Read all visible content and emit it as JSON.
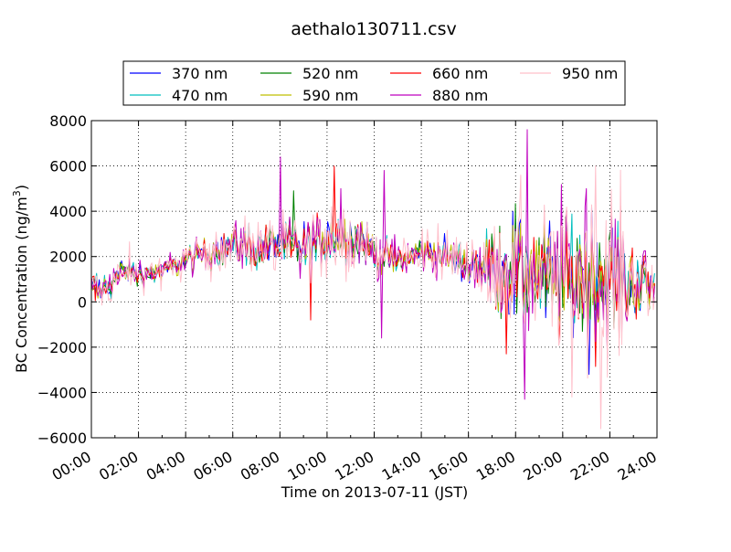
{
  "chart_data": {
    "type": "line",
    "title": "aethalo130711.csv",
    "xlabel": "Time on 2013-07-11 (JST)",
    "ylabel_text": "BC Concentration (ng/m",
    "ylabel_sup": "3",
    "ylabel_close": ")",
    "xlim": [
      0,
      24
    ],
    "ylim": [
      -6000,
      8000
    ],
    "x_ticks": [
      0,
      2,
      4,
      6,
      8,
      10,
      12,
      14,
      16,
      18,
      20,
      22,
      24
    ],
    "x_tick_labels": [
      "00:00",
      "02:00",
      "04:00",
      "06:00",
      "08:00",
      "10:00",
      "12:00",
      "14:00",
      "16:00",
      "18:00",
      "20:00",
      "22:00",
      "24:00"
    ],
    "y_ticks": [
      -6000,
      -4000,
      -2000,
      0,
      2000,
      4000,
      6000,
      8000
    ],
    "y_tick_labels": [
      "−6000",
      "−4000",
      "−2000",
      "0",
      "2000",
      "4000",
      "6000",
      "8000"
    ],
    "grid": true,
    "legend_position": "top",
    "series": [
      {
        "name": "370 nm",
        "color": "#0000ff"
      },
      {
        "name": "470 nm",
        "color": "#00bfbf"
      },
      {
        "name": "520 nm",
        "color": "#008000"
      },
      {
        "name": "590 nm",
        "color": "#bfbf00"
      },
      {
        "name": "660 nm",
        "color": "#ff0000"
      },
      {
        "name": "880 nm",
        "color": "#bf00bf"
      },
      {
        "name": "950 nm",
        "color": "#ffc0cb"
      }
    ],
    "baseline_profile": {
      "hours": [
        0,
        0.5,
        1,
        1.5,
        2,
        3,
        4,
        5,
        6,
        7,
        8,
        9,
        10,
        10.5,
        11,
        11.5,
        12,
        13,
        14,
        15,
        16,
        17,
        18,
        19,
        20,
        21,
        22,
        23,
        24
      ],
      "values": [
        600,
        500,
        1000,
        1400,
        1200,
        1300,
        1900,
        2200,
        2500,
        2400,
        2500,
        2300,
        2700,
        3000,
        2800,
        2700,
        2200,
        1800,
        2200,
        2000,
        1700,
        1500,
        1400,
        1300,
        1200,
        1000,
        1200,
        900,
        600
      ]
    },
    "noise_envelope": {
      "hours": [
        0,
        2,
        4,
        6,
        8,
        10,
        12,
        14,
        16,
        17,
        18,
        19,
        20,
        21,
        22,
        23,
        24
      ],
      "amplitude": [
        500,
        400,
        400,
        600,
        800,
        900,
        600,
        500,
        700,
        1200,
        1800,
        1400,
        1800,
        2200,
        2200,
        1200,
        800
      ]
    },
    "spikes": [
      {
        "hour": 8.0,
        "value": 6400,
        "series": "880 nm"
      },
      {
        "hour": 8.6,
        "value": 4900,
        "series": "520 nm"
      },
      {
        "hour": 9.3,
        "value": -800,
        "series": "660 nm"
      },
      {
        "hour": 10.3,
        "value": 6000,
        "series": "660 nm"
      },
      {
        "hour": 10.6,
        "value": 5000,
        "series": "880 nm"
      },
      {
        "hour": 12.4,
        "value": 5800,
        "series": "880 nm"
      },
      {
        "hour": 12.3,
        "value": -1600,
        "series": "880 nm"
      },
      {
        "hour": 17.6,
        "value": 4500,
        "series": "660 nm"
      },
      {
        "hour": 17.6,
        "value": -2300,
        "series": "660 nm"
      },
      {
        "hour": 18.5,
        "value": 7600,
        "series": "880 nm"
      },
      {
        "hour": 18.4,
        "value": -4300,
        "series": "880 nm"
      },
      {
        "hour": 20.4,
        "value": -4200,
        "series": "950 nm"
      },
      {
        "hour": 21.0,
        "value": 5000,
        "series": "880 nm"
      },
      {
        "hour": 21.4,
        "value": 6000,
        "series": "950 nm"
      },
      {
        "hour": 21.6,
        "value": -5600,
        "series": "950 nm"
      },
      {
        "hour": 21.1,
        "value": -3200,
        "series": "370 nm"
      },
      {
        "hour": 22.4,
        "value": -1600,
        "series": "660 nm"
      }
    ]
  }
}
